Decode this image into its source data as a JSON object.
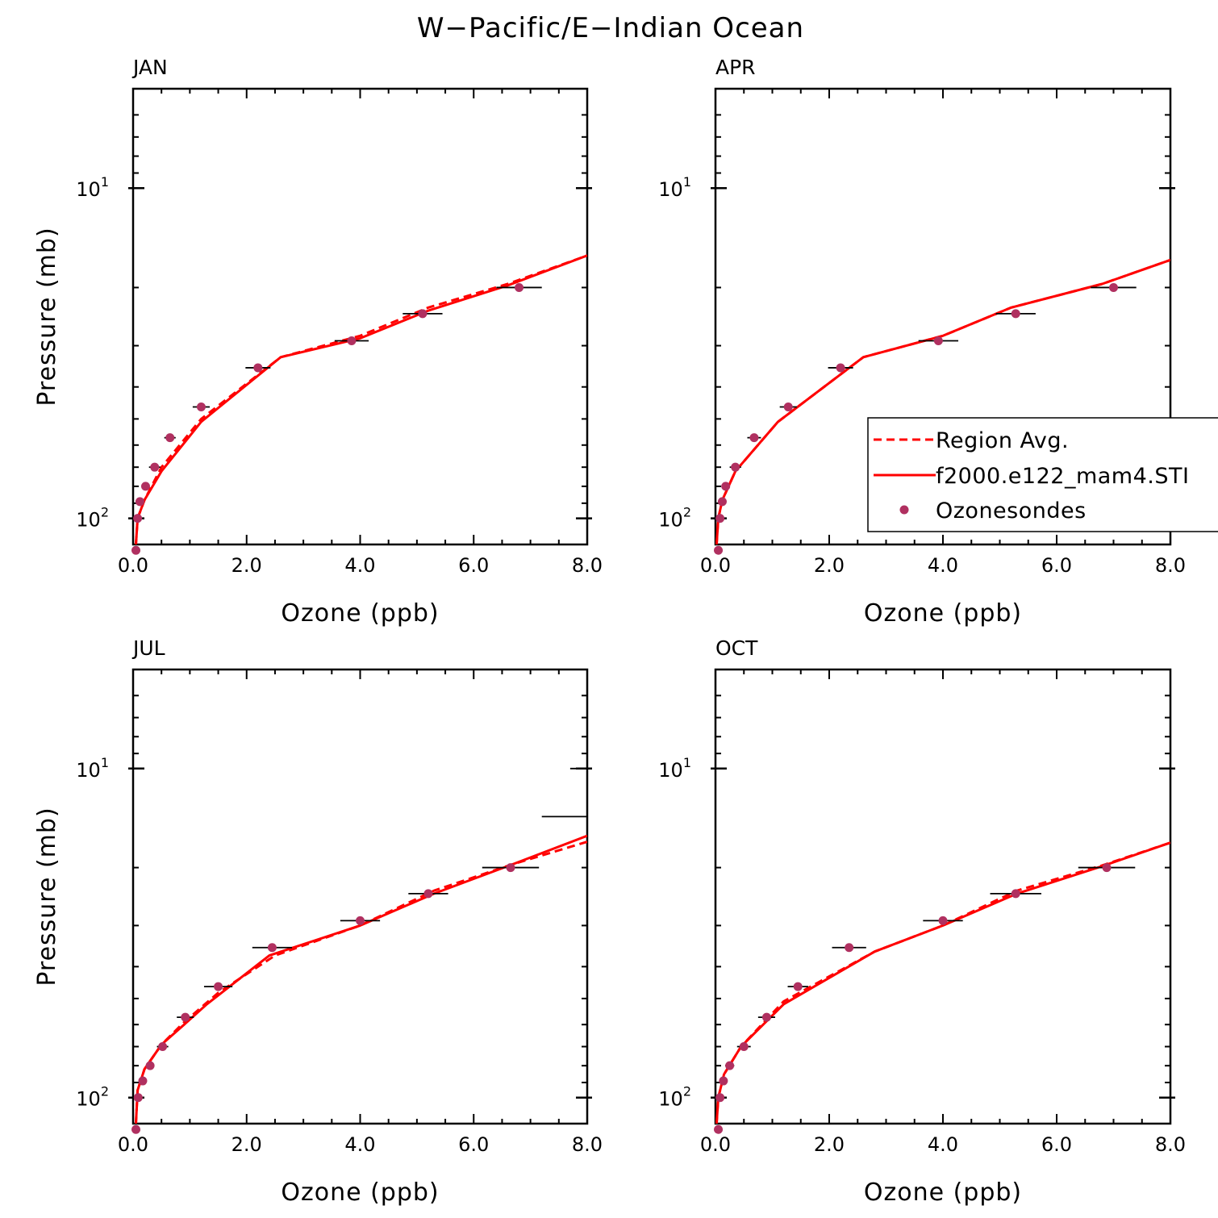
{
  "figure": {
    "title": "W−Pacific/E−Indian Ocean"
  },
  "colors": {
    "model": "#ff0000",
    "sondes": "#b03060",
    "axes": "#000000"
  },
  "legend": {
    "entries": [
      {
        "label": "Region Avg.",
        "style": "dashed",
        "color": "#ff0000"
      },
      {
        "label": "f2000.e122_mam4.STI",
        "style": "solid",
        "color": "#ff0000"
      },
      {
        "label": "Ozonesondes",
        "style": "marker",
        "color": "#b03060"
      }
    ],
    "panel": "APR",
    "placement": "lower-right, overflowing the right edge"
  },
  "chart_data": [
    {
      "type": "line",
      "title": "JAN",
      "xlabel": "Ozone (ppb)",
      "ylabel": "Pressure (mb)",
      "xlim": [
        0,
        8
      ],
      "ylim": [
        120,
        5
      ],
      "yscale": "log",
      "xticks": [
        "0.0",
        "2.0",
        "4.0",
        "6.0",
        "8.0"
      ],
      "yticks": [
        {
          "base": "10",
          "exp": "1"
        },
        {
          "base": "10",
          "exp": "2"
        }
      ],
      "series": [
        {
          "name": "Region Avg.",
          "style": "dashed",
          "x": [
            0.05,
            0.08,
            0.2,
            0.5,
            1.2,
            2.6,
            4.0,
            5.2,
            6.6,
            8.0
          ],
          "y": [
            120,
            100,
            88,
            70,
            50,
            32.5,
            28,
            23,
            19.5,
            16
          ]
        },
        {
          "name": "f2000.e122_mam4.STI",
          "style": "solid",
          "x": [
            0.05,
            0.08,
            0.2,
            0.5,
            1.2,
            2.6,
            4.0,
            5.2,
            6.6,
            8.0
          ],
          "y": [
            120,
            100,
            88,
            72,
            51,
            32.5,
            28.5,
            23.5,
            19.7,
            16
          ]
        },
        {
          "name": "Ozonesondes",
          "style": "marker",
          "x": [
            0.05,
            0.08,
            0.12,
            0.22,
            0.38,
            0.65,
            1.2,
            2.2,
            3.85,
            5.1,
            6.8
          ],
          "y": [
            125,
            100,
            89,
            80,
            70,
            57,
            46,
            35,
            29,
            24,
            20
          ],
          "xerr": [
            0.02,
            0.03,
            0.05,
            0.07,
            0.1,
            0.1,
            0.15,
            0.22,
            0.3,
            0.35,
            0.4
          ]
        }
      ]
    },
    {
      "type": "line",
      "title": "APR",
      "xlabel": "Ozone (ppb)",
      "ylabel": "",
      "xlim": [
        0,
        8
      ],
      "ylim": [
        120,
        5
      ],
      "yscale": "log",
      "xticks": [
        "0.0",
        "2.0",
        "4.0",
        "6.0",
        "8.0"
      ],
      "yticks": [
        {
          "base": "10",
          "exp": "1"
        },
        {
          "base": "10",
          "exp": "2"
        }
      ],
      "series": [
        {
          "name": "Region Avg.",
          "style": "dashed",
          "x": [
            0.02,
            0.05,
            0.12,
            0.35,
            1.1,
            2.6,
            4.0,
            5.2,
            6.8,
            8.0
          ],
          "y": [
            120,
            100,
            88,
            72,
            51,
            32.5,
            28,
            23,
            19.5,
            16.5
          ]
        },
        {
          "name": "f2000.e122_mam4.STI",
          "style": "solid",
          "x": [
            0.02,
            0.05,
            0.12,
            0.35,
            1.1,
            2.6,
            4.0,
            5.2,
            6.8,
            8.0
          ],
          "y": [
            120,
            100,
            88,
            72,
            51,
            32.5,
            28,
            23,
            19.5,
            16.5
          ]
        },
        {
          "name": "Ozonesondes",
          "style": "marker",
          "x": [
            0.05,
            0.08,
            0.12,
            0.18,
            0.35,
            0.68,
            1.28,
            2.2,
            3.92,
            5.28,
            7.0
          ],
          "y": [
            125,
            100,
            89,
            80,
            70,
            57,
            46,
            35,
            29,
            24,
            20
          ],
          "xerr": [
            0.02,
            0.03,
            0.05,
            0.07,
            0.1,
            0.12,
            0.15,
            0.22,
            0.35,
            0.35,
            0.4
          ]
        }
      ]
    },
    {
      "type": "line",
      "title": "JUL",
      "xlabel": "Ozone (ppb)",
      "ylabel": "Pressure (mb)",
      "xlim": [
        0,
        8
      ],
      "ylim": [
        120,
        5
      ],
      "yscale": "log",
      "xticks": [
        "0.0",
        "2.0",
        "4.0",
        "6.0",
        "8.0"
      ],
      "yticks": [
        {
          "base": "10",
          "exp": "1"
        },
        {
          "base": "10",
          "exp": "2"
        }
      ],
      "series": [
        {
          "name": "Region Avg.",
          "style": "dashed",
          "x": [
            0.05,
            0.08,
            0.2,
            0.5,
            0.9,
            1.5,
            2.5,
            4.0,
            5.3,
            6.7,
            8.0
          ],
          "y": [
            120,
            95,
            82,
            69,
            59,
            48,
            37,
            30,
            23.5,
            19.5,
            16.7
          ]
        },
        {
          "name": "f2000.e122_mam4.STI",
          "style": "solid",
          "x": [
            0.05,
            0.08,
            0.2,
            0.5,
            0.9,
            1.3,
            2.4,
            4.0,
            5.3,
            6.7,
            8.0
          ],
          "y": [
            120,
            95,
            82,
            69,
            60,
            52,
            37,
            30,
            24,
            19.5,
            16
          ]
        },
        {
          "name": "Ozonesondes",
          "style": "marker",
          "x": [
            0.05,
            0.09,
            0.17,
            0.3,
            0.52,
            0.92,
            1.5,
            2.45,
            4.0,
            5.2,
            6.65
          ],
          "y": [
            125,
            100,
            89,
            80,
            70,
            57,
            46,
            35,
            29,
            24,
            20
          ],
          "xerr": [
            0.02,
            0.03,
            0.05,
            0.07,
            0.1,
            0.15,
            0.25,
            0.35,
            0.35,
            0.35,
            0.5
          ]
        },
        {
          "name": "",
          "style": "errorbar-only",
          "x": [
            8.0,
            8.0
          ],
          "y": [
            14,
            10
          ],
          "xerr": [
            0.8,
            0.3
          ]
        }
      ]
    },
    {
      "type": "line",
      "title": "OCT",
      "xlabel": "Ozone (ppb)",
      "ylabel": "",
      "xlim": [
        0,
        8
      ],
      "ylim": [
        120,
        5
      ],
      "yscale": "log",
      "xticks": [
        "0.0",
        "2.0",
        "4.0",
        "6.0",
        "8.0"
      ],
      "yticks": [
        {
          "base": "10",
          "exp": "1"
        },
        {
          "base": "10",
          "exp": "2"
        }
      ],
      "series": [
        {
          "name": "Region Avg.",
          "style": "dashed",
          "x": [
            0.02,
            0.05,
            0.15,
            0.45,
            1.2,
            2.8,
            4.0,
            5.3,
            6.8,
            8.0
          ],
          "y": [
            120,
            100,
            85,
            70,
            51,
            36,
            30,
            23.5,
            19.7,
            16.8
          ]
        },
        {
          "name": "f2000.e122_mam4.STI",
          "style": "solid",
          "x": [
            0.02,
            0.05,
            0.15,
            0.45,
            1.2,
            2.8,
            4.0,
            5.3,
            6.8,
            8.0
          ],
          "y": [
            120,
            100,
            85,
            70,
            52,
            36,
            30,
            24,
            19.8,
            16.8
          ]
        },
        {
          "name": "Ozonesondes",
          "style": "marker",
          "x": [
            0.05,
            0.08,
            0.14,
            0.25,
            0.5,
            0.9,
            1.45,
            2.35,
            4.0,
            5.28,
            6.88
          ],
          "y": [
            125,
            100,
            89,
            80,
            70,
            57,
            46,
            35,
            29,
            24,
            20
          ],
          "xerr": [
            0.02,
            0.03,
            0.05,
            0.08,
            0.12,
            0.15,
            0.18,
            0.3,
            0.35,
            0.45,
            0.5
          ]
        }
      ]
    }
  ]
}
